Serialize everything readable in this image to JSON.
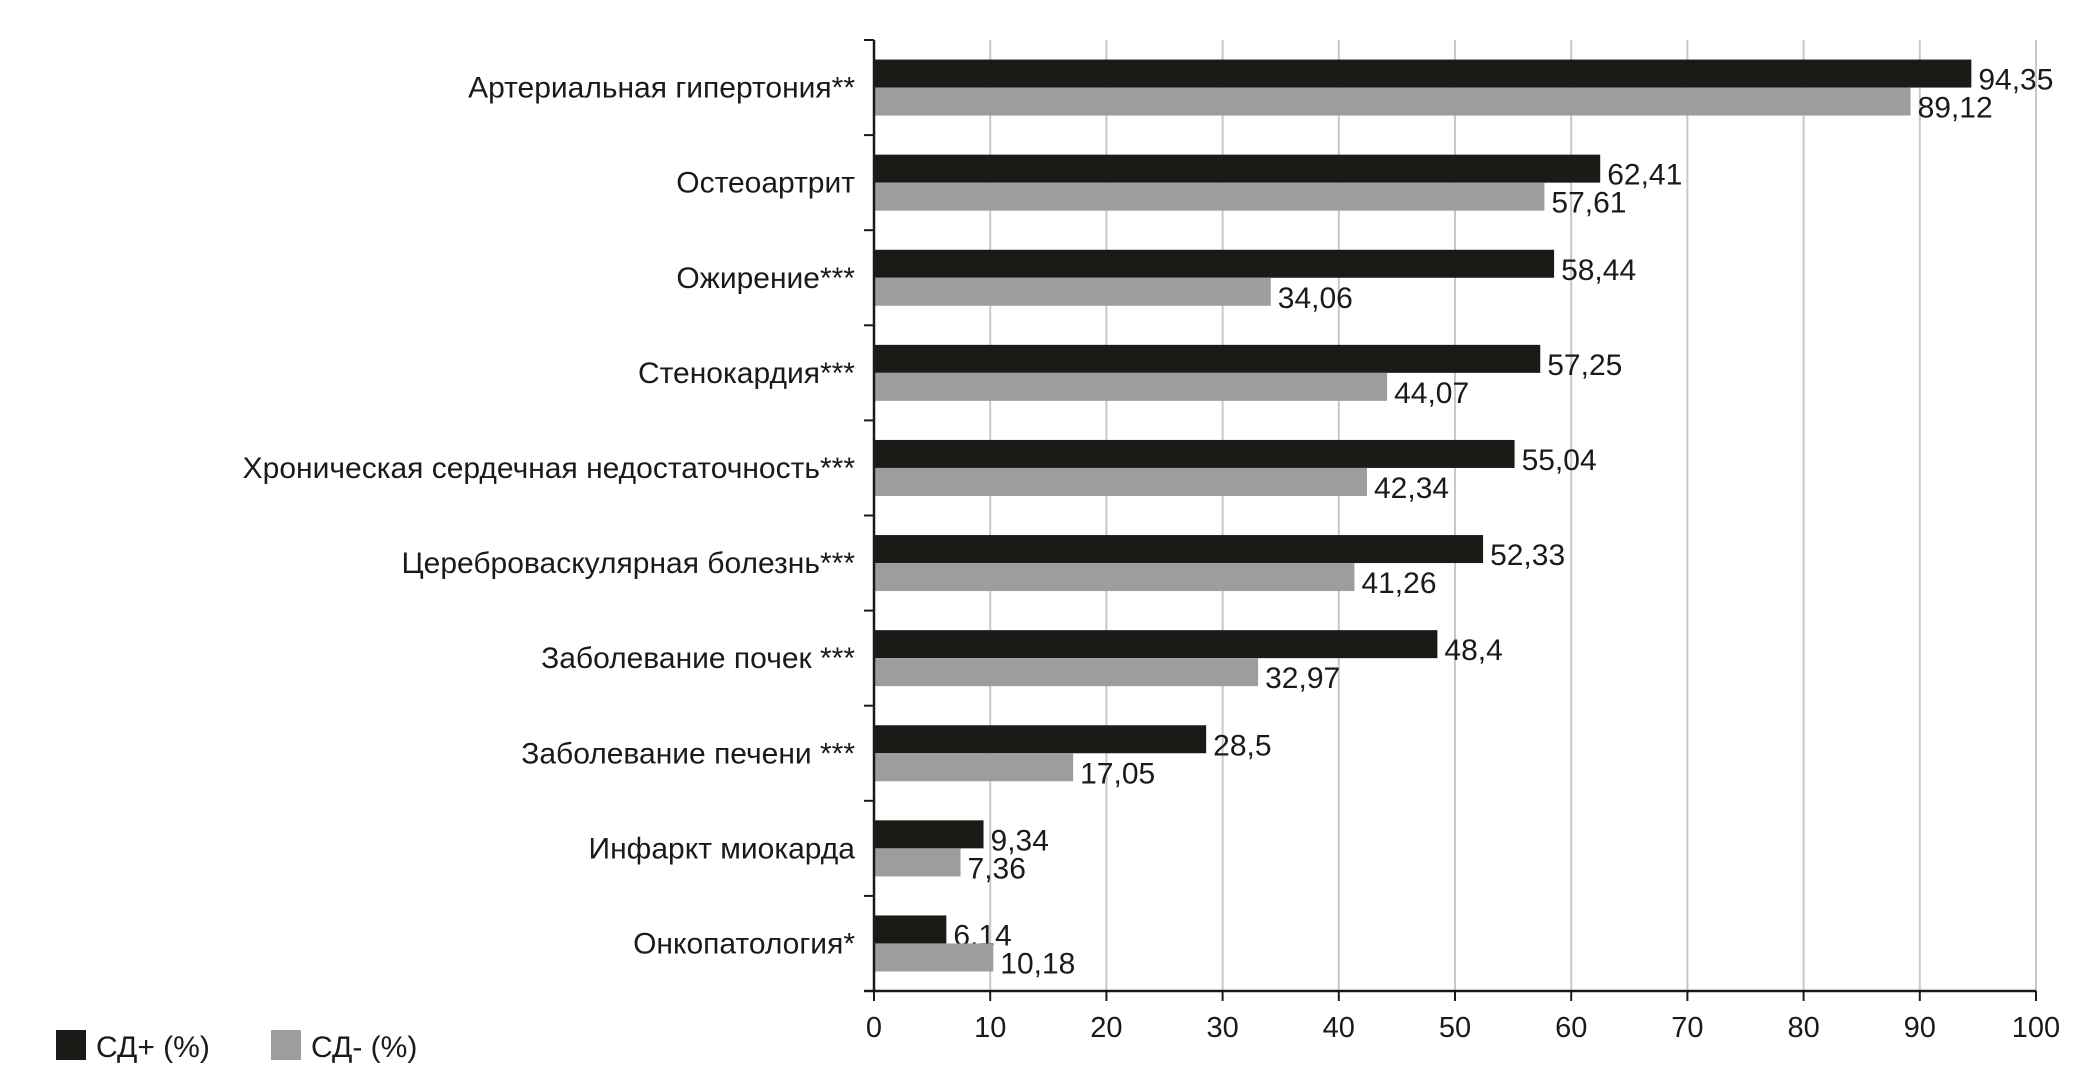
{
  "chart_data": {
    "type": "bar",
    "orientation": "horizontal",
    "title": "",
    "xlabel": "",
    "ylabel": "",
    "xlim": [
      0,
      100
    ],
    "xticks": [
      "0",
      "10",
      "20",
      "30",
      "40",
      "50",
      "60",
      "70",
      "80",
      "90",
      "100"
    ],
    "grid": true,
    "legend_position": "bottom-left",
    "categories": [
      "Артериальная гипертония**",
      "Остеоартрит",
      "Ожирение***",
      "Стенокардия***",
      "Хроническая сердечная недостаточность***",
      "Цереброваскулярная болезнь***",
      "Заболевание почек ***",
      "Заболевание печени ***",
      "Инфаркт миокарда",
      "Онкопатология*"
    ],
    "series": [
      {
        "name": "СД+ (%)",
        "color": "#1c1a17",
        "values": [
          94.35,
          62.41,
          58.44,
          57.25,
          55.04,
          52.33,
          48.4,
          28.5,
          9.34,
          6.14
        ],
        "labels": [
          "94,35",
          "62,41",
          "58,44",
          "57,25",
          "55,04",
          "52,33",
          "48,4",
          "28,5",
          "9,34",
          "6,14"
        ]
      },
      {
        "name": "СД- (%)",
        "color": "#9d9d9d",
        "values": [
          89.12,
          57.61,
          34.06,
          44.07,
          42.34,
          41.26,
          32.97,
          17.05,
          7.36,
          10.18
        ],
        "labels": [
          "89,12",
          "57,61",
          "34,06",
          "44,07",
          "42,34",
          "41,26",
          "32,97",
          "17,05",
          "7,36",
          "10,18"
        ]
      }
    ]
  }
}
